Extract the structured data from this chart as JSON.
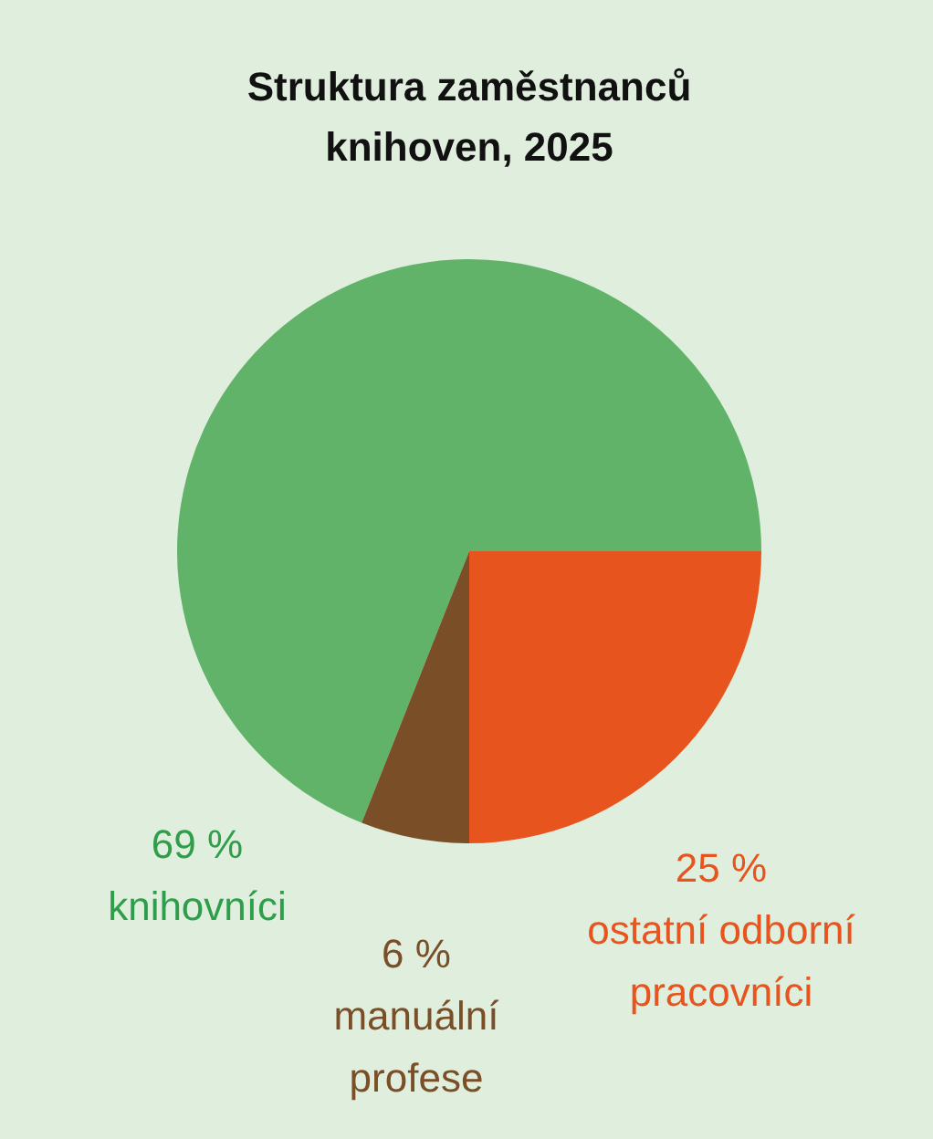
{
  "chart_data": {
    "type": "pie",
    "title": "Struktura zaměstnanců knihoven, 2025",
    "categories": [
      "knihovníci",
      "manuální profese",
      "ostatní odborní pracovníci"
    ],
    "values": [
      69,
      6,
      25
    ],
    "colors": [
      "#62b36a",
      "#7a4e27",
      "#e8541e"
    ],
    "value_labels": [
      "69 %",
      "6 %",
      "25 %"
    ]
  }
}
